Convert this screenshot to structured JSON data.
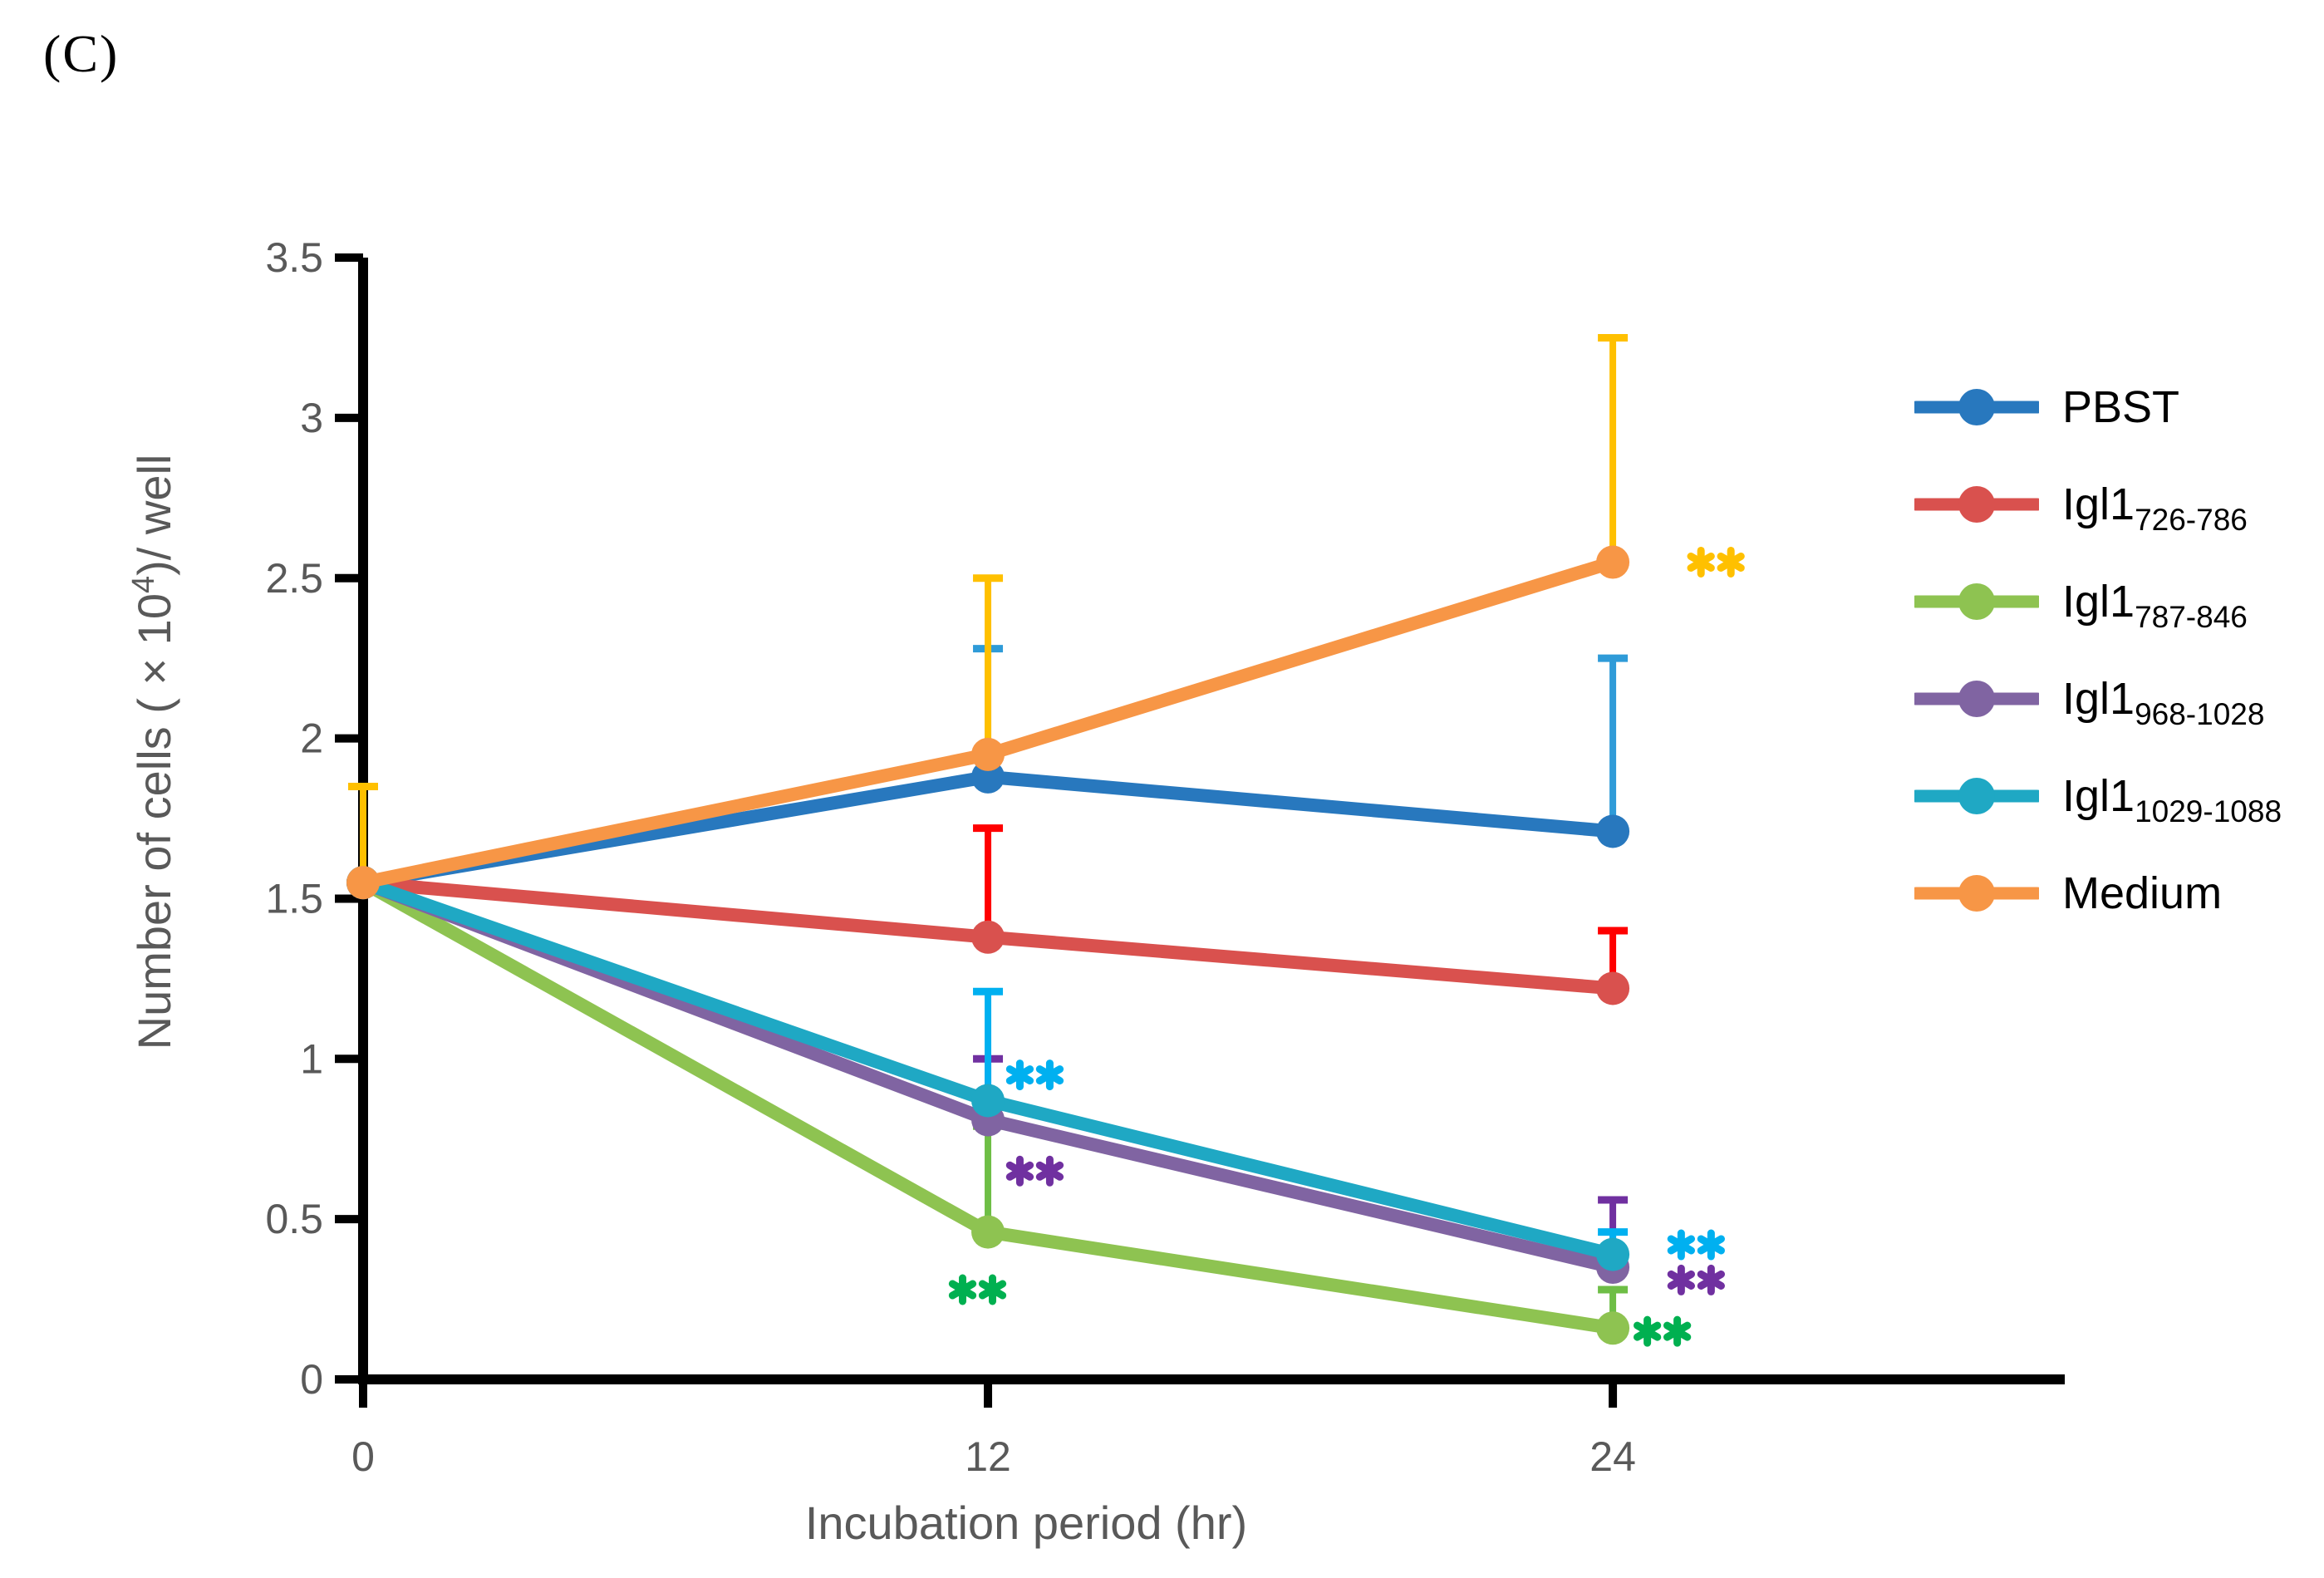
{
  "panel_label": "(C)",
  "chart_data": {
    "type": "line",
    "title": "",
    "xlabel": "Incubation period (hr)",
    "ylabel": "Number of cells ( × 10⁴)/ well",
    "ylabel_parts": {
      "prefix": "Number of cells ( × 10",
      "sup": "4",
      "suffix": ")/ well"
    },
    "x": [
      0,
      12,
      24
    ],
    "x_tick_labels": [
      "0",
      "12",
      "24"
    ],
    "y_ticks": [
      0,
      0.5,
      1,
      1.5,
      2,
      2.5,
      3,
      3.5
    ],
    "y_tick_labels": [
      "0",
      "0.5",
      "1",
      "1.5",
      "2",
      "2.5",
      "3",
      "3.5"
    ],
    "xlim": [
      0,
      32.7
    ],
    "ylim": [
      0,
      3.5
    ],
    "grid": false,
    "legend_position": "right",
    "axis_color": "#000000",
    "tick_label_color": "#595959",
    "axis_title_color": "#595959",
    "series": [
      {
        "name": "PBST",
        "label_main": "PBST",
        "label_sub": "",
        "color": "#2878BE",
        "error_color": "#2F9BD8",
        "values": [
          1.55,
          1.88,
          1.71
        ],
        "error_up": [
          null,
          0.4,
          0.54
        ]
      },
      {
        "name": "Igl1_726-786",
        "label_main": "Igl1",
        "label_sub": "726-786",
        "color": "#D9514E",
        "error_color": "#FF0000",
        "values": [
          1.55,
          1.38,
          1.22
        ],
        "error_up": [
          null,
          0.34,
          0.18
        ]
      },
      {
        "name": "Igl1_787-846",
        "label_main": "Igl1",
        "label_sub": "787-846",
        "color": "#8EC351",
        "error_color": "#6EBE46",
        "values": [
          1.55,
          0.46,
          0.16
        ],
        "error_up": [
          null,
          0.33,
          0.12
        ]
      },
      {
        "name": "Igl1_968-1028",
        "label_main": "Igl1",
        "label_sub": "968-1028",
        "color": "#8064A2",
        "error_color": "#7030A0",
        "values": [
          1.55,
          0.81,
          0.35
        ],
        "error_up": [
          null,
          0.19,
          0.21
        ]
      },
      {
        "name": "Igl1_1029-1088",
        "label_main": "Igl1",
        "label_sub": "1029-1088",
        "color": "#1FA8C4",
        "error_color": "#00B0F0",
        "values": [
          1.55,
          0.87,
          0.39
        ],
        "error_up": [
          null,
          0.34,
          0.07
        ]
      },
      {
        "name": "Medium",
        "label_main": "Medium",
        "label_sub": "",
        "color": "#F79646",
        "error_color": "#FFC000",
        "values": [
          1.55,
          1.95,
          2.55
        ],
        "error_up": [
          0.3,
          0.55,
          0.7
        ]
      }
    ],
    "annotations": [
      {
        "text": "**",
        "x": 12.9,
        "y": 0.95,
        "color": "#00B0F0"
      },
      {
        "text": "**",
        "x": 12.9,
        "y": 0.65,
        "color": "#7030A0"
      },
      {
        "text": "**",
        "x": 11.8,
        "y": 0.28,
        "color": "#00B050"
      },
      {
        "text": "**",
        "x": 25.98,
        "y": 2.55,
        "color": "#FFC000"
      },
      {
        "text": "**",
        "x": 25.6,
        "y": 0.42,
        "color": "#00B0F0"
      },
      {
        "text": "**",
        "x": 25.6,
        "y": 0.31,
        "color": "#7030A0"
      },
      {
        "text": "**",
        "x": 24.95,
        "y": 0.15,
        "color": "#00B050"
      }
    ]
  }
}
